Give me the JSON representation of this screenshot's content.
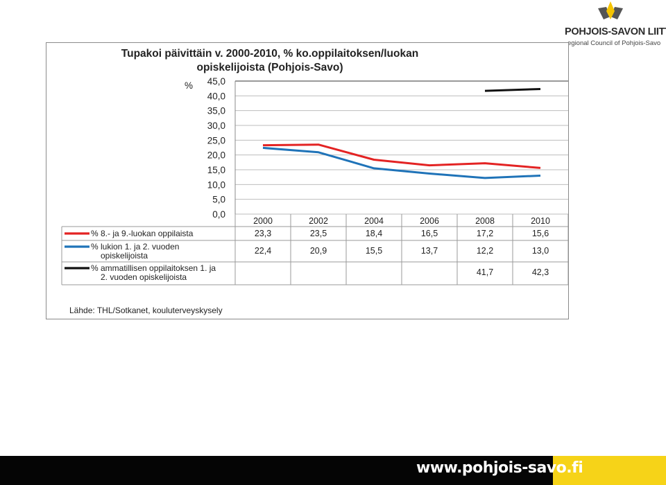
{
  "logo": {
    "name": "POHJOIS-SAVON LIITTO",
    "subtitle": "egional Council of Pohjois-Savo"
  },
  "footer": {
    "url": "www.pohjois-savo.fi"
  },
  "colors": {
    "series1": "#e32323",
    "series2": "#1f73b8",
    "series3": "#111111",
    "footer_bg": "#050505",
    "footer_accent": "#f6d318",
    "logo_yellow": "#f5c400",
    "logo_grey": "#555555"
  },
  "chart_data": {
    "type": "line",
    "title_line1": "Tupakoi päivittäin v. 2000-2010, % ko.oppilaitoksen/luokan",
    "title_line2": "opiskelijoista (Pohjois-Savo)",
    "ylabel": "%",
    "ylim": [
      0,
      45
    ],
    "y_ticks": [
      "0,0",
      "5,0",
      "10,0",
      "15,0",
      "20,0",
      "25,0",
      "30,0",
      "35,0",
      "40,0",
      "45,0"
    ],
    "grid": true,
    "categories": [
      "2000",
      "2002",
      "2004",
      "2006",
      "2008",
      "2010"
    ],
    "series": [
      {
        "legend_line1": "% 8.- ja 9.-luokan oppilaista",
        "legend_line2": "",
        "color": "#e32323",
        "values": [
          23.3,
          23.5,
          18.4,
          16.5,
          17.2,
          15.6
        ],
        "labels": [
          "23,3",
          "23,5",
          "18,4",
          "16,5",
          "17,2",
          "15,6"
        ]
      },
      {
        "legend_line1": "% lukion 1. ja 2. vuoden",
        "legend_line2": "opiskelijoista",
        "color": "#1f73b8",
        "values": [
          22.4,
          20.9,
          15.5,
          13.7,
          12.2,
          13.0
        ],
        "labels": [
          "22,4",
          "20,9",
          "15,5",
          "13,7",
          "12,2",
          "13,0"
        ]
      },
      {
        "legend_line1": "% ammatillisen oppilaitoksen 1. ja",
        "legend_line2": "2. vuoden opiskelijoista",
        "color": "#111111",
        "values": [
          null,
          null,
          null,
          null,
          41.7,
          42.3
        ],
        "labels": [
          "",
          "",
          "",
          "",
          "41,7",
          "42,3"
        ]
      }
    ],
    "source": "Lähde: THL/Sotkanet, kouluterveyskysely"
  }
}
